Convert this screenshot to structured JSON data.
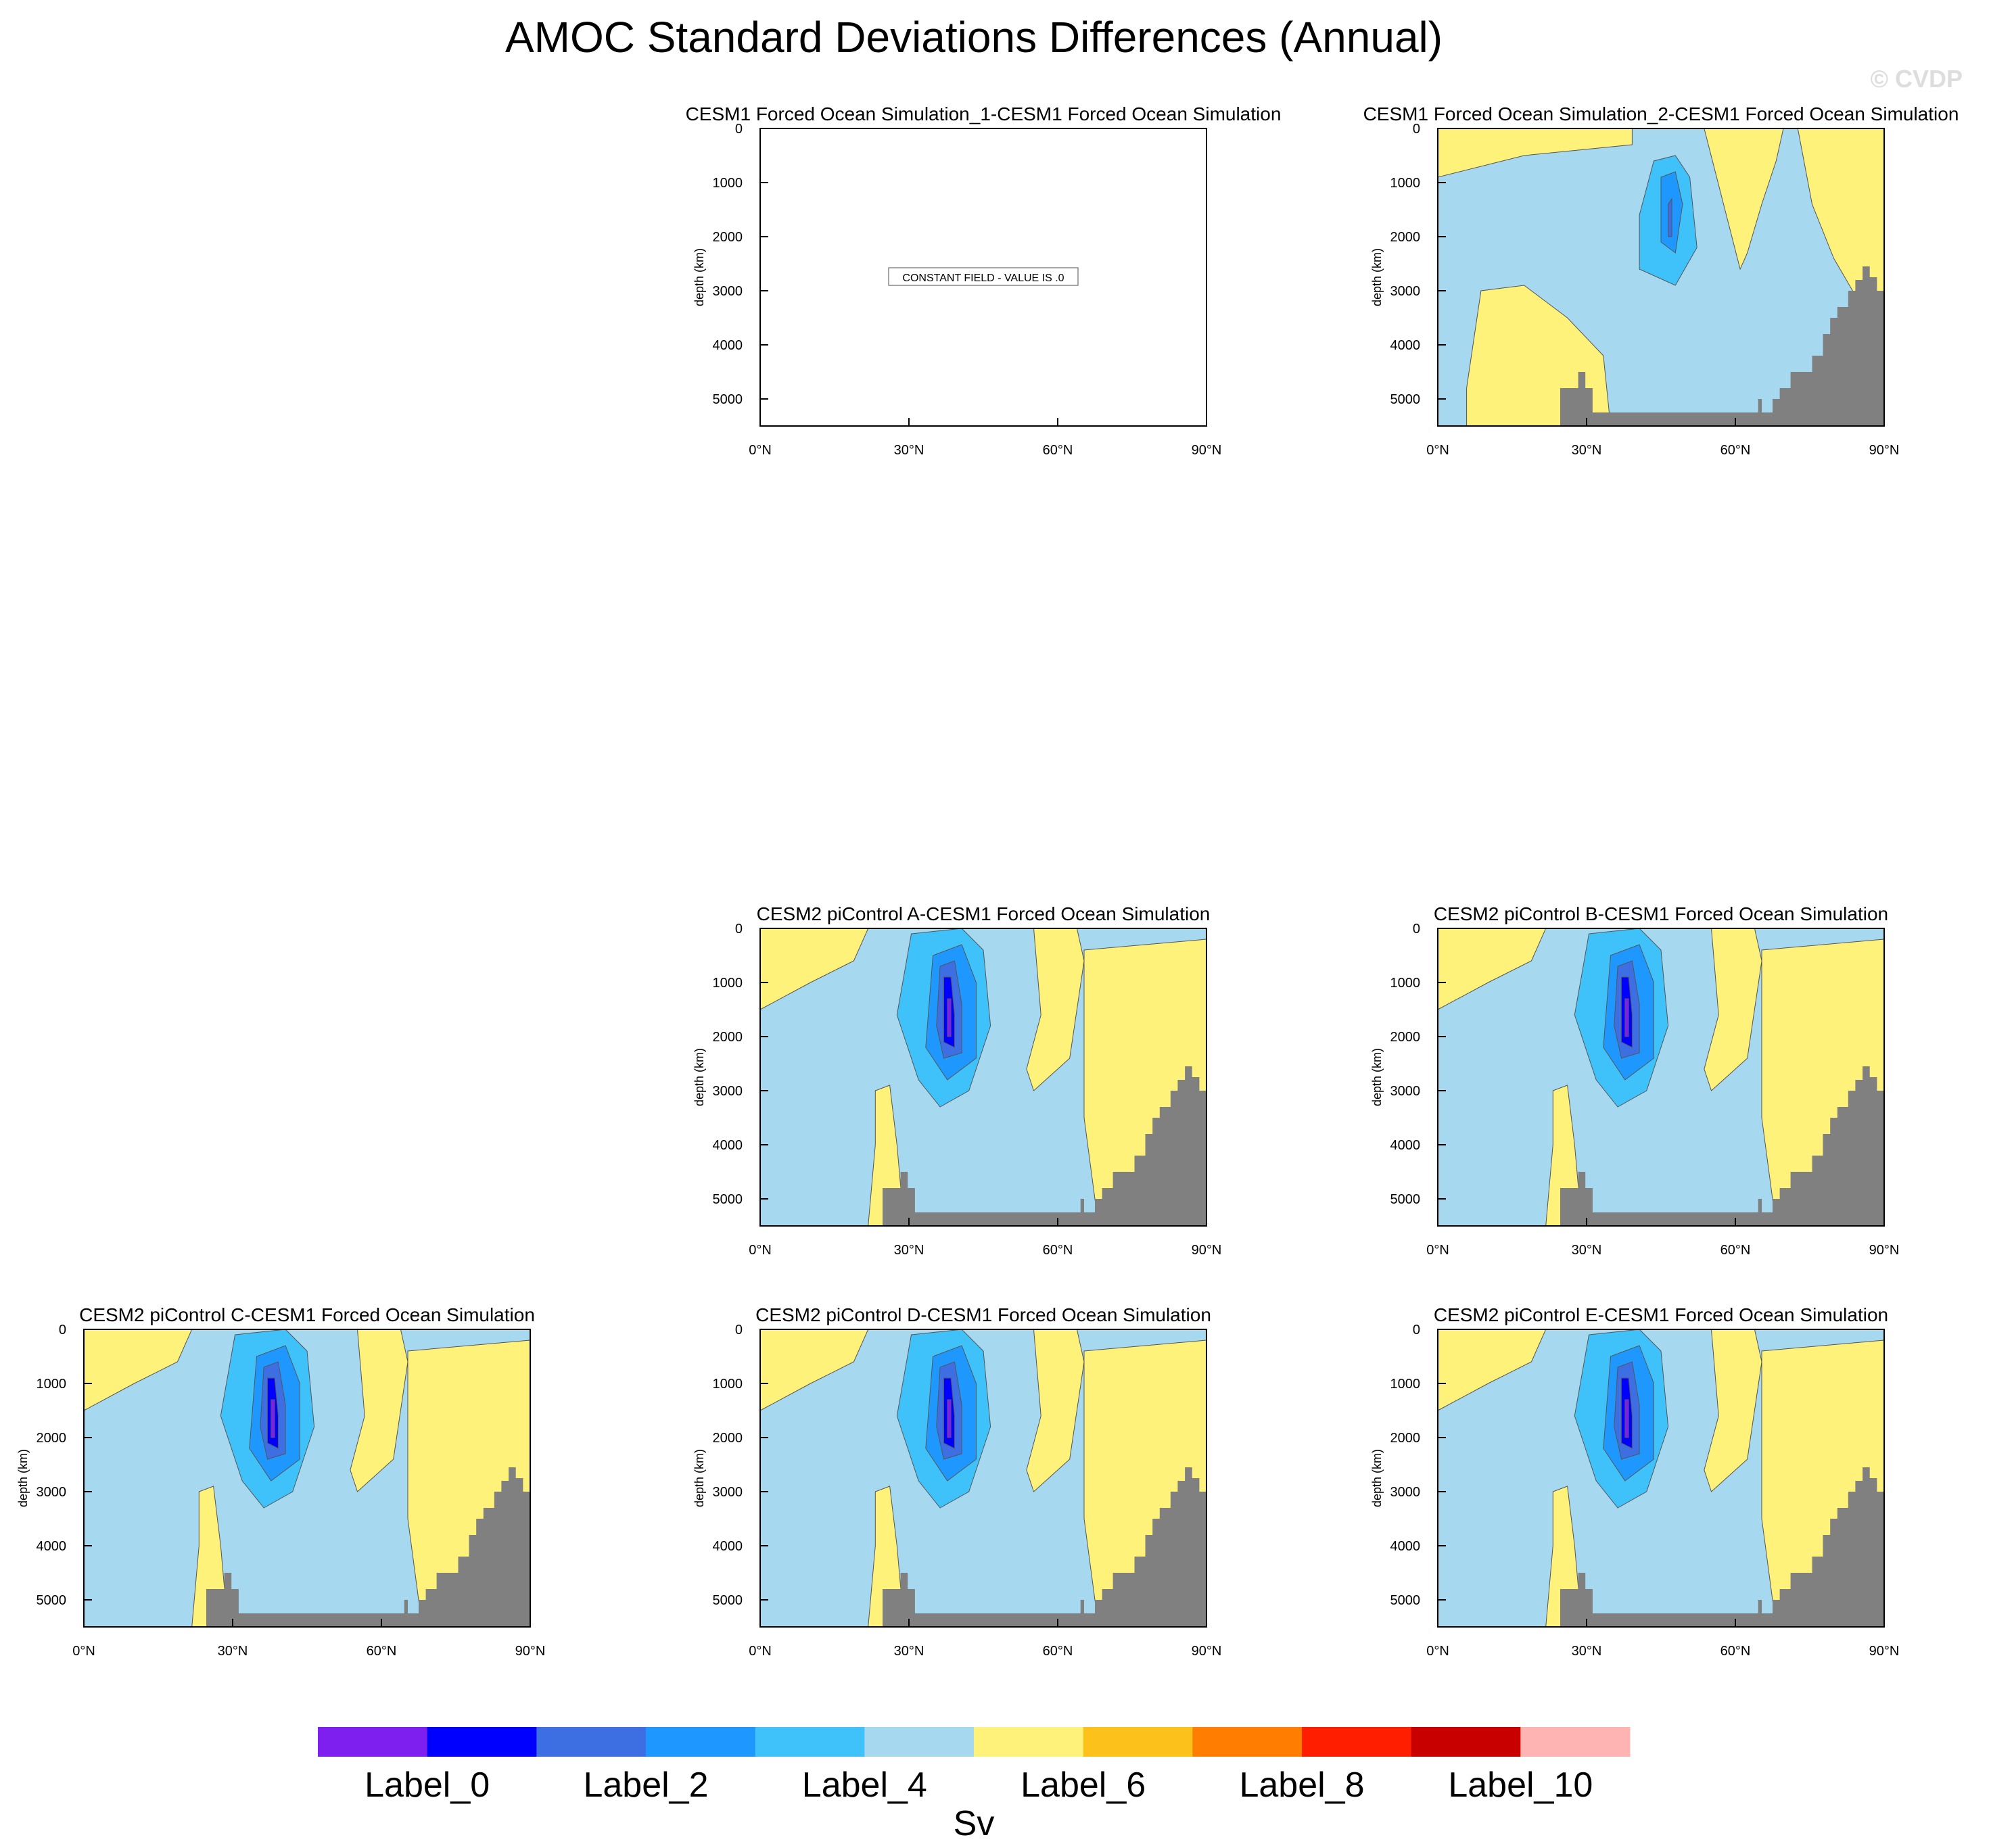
{
  "title": "AMOC Standard Deviations Differences (Annual)",
  "watermark": "© CVDP",
  "colors": {
    "land": "#808080",
    "palette": [
      "#7f1fef",
      "#0000ff",
      "#3d6fe3",
      "#1e98ff",
      "#3fc2fa",
      "#a6d8f0",
      "#fff27a",
      "#fcc21b",
      "#ff7d00",
      "#ff1e00",
      "#c80000",
      "#ffb4b4"
    ]
  },
  "chart_data": [
    {
      "type": "heatmap",
      "title": "CESM1 Forced Ocean Simulation_1-CESM1 Forced Ocean Simulation",
      "ylabel": "depth (km)",
      "x_ticks": [
        "0°N",
        "30°N",
        "60°N",
        "90°N"
      ],
      "y_ticks": [
        "0",
        "1000",
        "2000",
        "3000",
        "4000",
        "5000"
      ],
      "xlim": [
        0,
        90
      ],
      "ylim": [
        5500,
        0
      ],
      "constant_field": "CONSTANT FIELD - VALUE IS .0",
      "pattern": "none"
    },
    {
      "type": "heatmap",
      "title": "CESM1 Forced Ocean Simulation_2-CESM1 Forced Ocean Simulation",
      "ylabel": "depth (km)",
      "x_ticks": [
        "0°N",
        "30°N",
        "60°N",
        "90°N"
      ],
      "y_ticks": [
        "0",
        "1000",
        "2000",
        "3000",
        "4000",
        "5000"
      ],
      "xlim": [
        0,
        90
      ],
      "ylim": [
        5500,
        0
      ],
      "pattern": "two"
    },
    {
      "type": "heatmap",
      "title": "CESM2 piControl A-CESM1 Forced Ocean Simulation",
      "ylabel": "depth (km)",
      "x_ticks": [
        "0°N",
        "30°N",
        "60°N",
        "90°N"
      ],
      "y_ticks": [
        "0",
        "1000",
        "2000",
        "3000",
        "4000",
        "5000"
      ],
      "xlim": [
        0,
        90
      ],
      "ylim": [
        5500,
        0
      ],
      "pattern": "pi"
    },
    {
      "type": "heatmap",
      "title": "CESM2 piControl B-CESM1 Forced Ocean Simulation",
      "ylabel": "depth (km)",
      "x_ticks": [
        "0°N",
        "30°N",
        "60°N",
        "90°N"
      ],
      "y_ticks": [
        "0",
        "1000",
        "2000",
        "3000",
        "4000",
        "5000"
      ],
      "xlim": [
        0,
        90
      ],
      "ylim": [
        5500,
        0
      ],
      "pattern": "pi"
    },
    {
      "type": "heatmap",
      "title": "CESM2 piControl C-CESM1 Forced Ocean Simulation",
      "ylabel": "depth (km)",
      "x_ticks": [
        "0°N",
        "30°N",
        "60°N",
        "90°N"
      ],
      "y_ticks": [
        "0",
        "1000",
        "2000",
        "3000",
        "4000",
        "5000"
      ],
      "xlim": [
        0,
        90
      ],
      "ylim": [
        5500,
        0
      ],
      "pattern": "pi"
    },
    {
      "type": "heatmap",
      "title": "CESM2 piControl D-CESM1 Forced Ocean Simulation",
      "ylabel": "depth (km)",
      "x_ticks": [
        "0°N",
        "30°N",
        "60°N",
        "90°N"
      ],
      "y_ticks": [
        "0",
        "1000",
        "2000",
        "3000",
        "4000",
        "5000"
      ],
      "xlim": [
        0,
        90
      ],
      "ylim": [
        5500,
        0
      ],
      "pattern": "pi"
    },
    {
      "type": "heatmap",
      "title": "CESM2 piControl E-CESM1 Forced Ocean Simulation",
      "ylabel": "depth (km)",
      "x_ticks": [
        "0°N",
        "30°N",
        "60°N",
        "90°N"
      ],
      "y_ticks": [
        "0",
        "1000",
        "2000",
        "3000",
        "4000",
        "5000"
      ],
      "xlim": [
        0,
        90
      ],
      "ylim": [
        5500,
        0
      ],
      "pattern": "pi"
    }
  ],
  "colorbar": {
    "labels": [
      "Label_0",
      "Label_2",
      "Label_4",
      "Label_6",
      "Label_8",
      "Label_10"
    ],
    "units": "Sv"
  }
}
